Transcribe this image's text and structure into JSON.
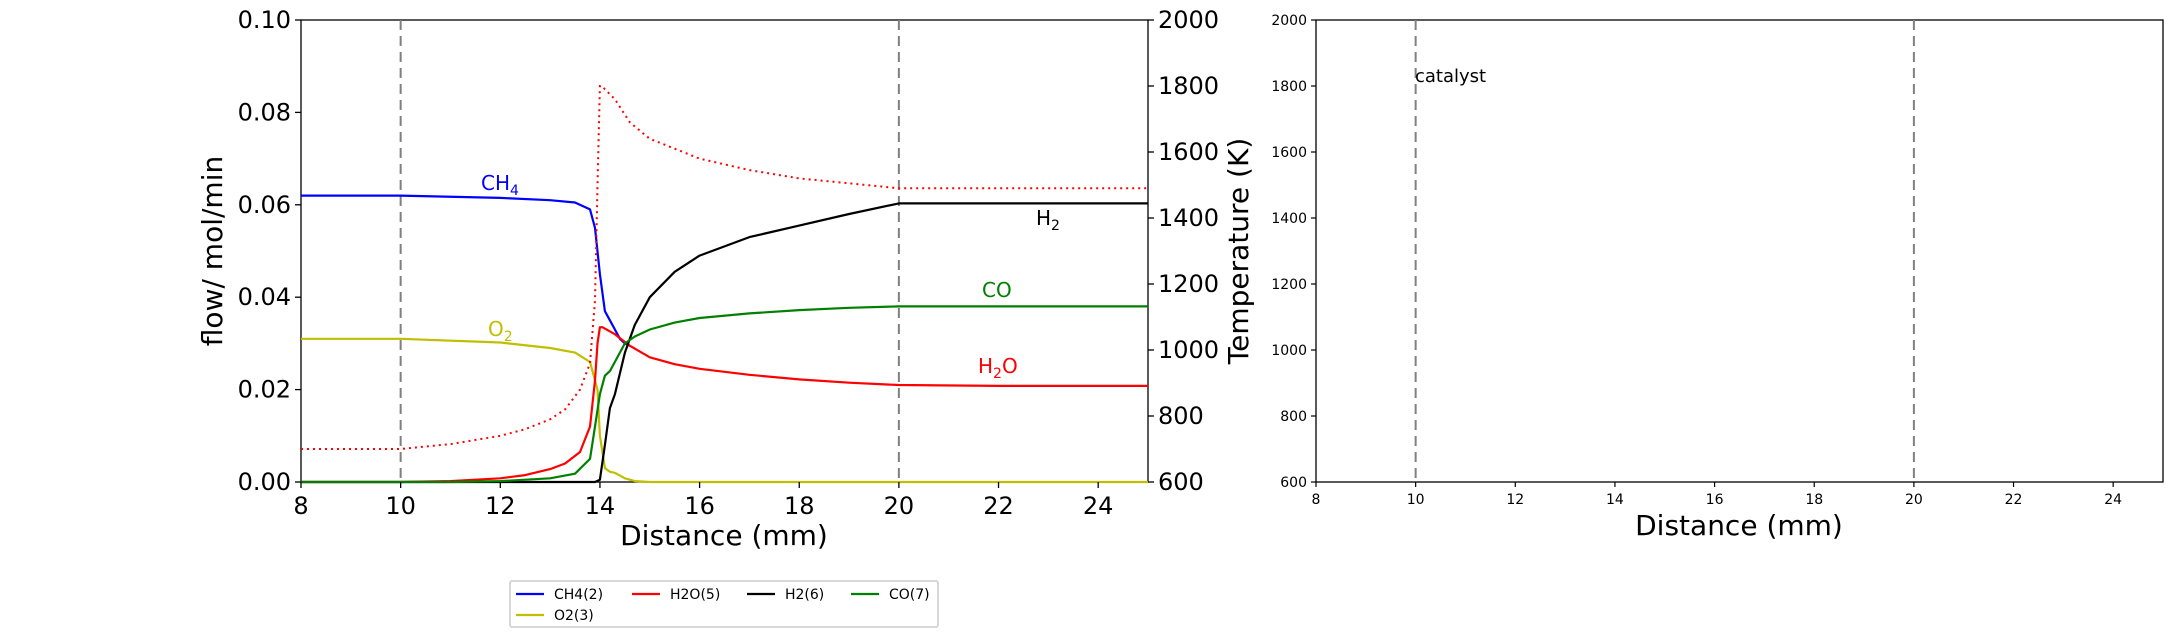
{
  "chart_data": [
    {
      "type": "line",
      "xlabel": "Distance (mm)",
      "ylabel": "flow/ mol/min",
      "y2label": "Temperature (K)",
      "xlim": [
        8,
        25
      ],
      "ylim": [
        0,
        0.1
      ],
      "y2lim": [
        600,
        2000
      ],
      "xticks": [
        "8",
        "10",
        "12",
        "14",
        "16",
        "18",
        "20",
        "22",
        "24"
      ],
      "yticks": [
        "0.00",
        "0.02",
        "0.04",
        "0.06",
        "0.08",
        "0.10"
      ],
      "y2ticks": [
        "600",
        "800",
        "1000",
        "1200",
        "1400",
        "1600",
        "1800",
        "2000"
      ],
      "vlines": [
        10,
        20
      ],
      "grid": false,
      "series": [
        {
          "name": "CH4(2)",
          "color": "#0000ff",
          "label": {
            "base": "CH",
            "sub": "4"
          },
          "x": [
            8,
            10,
            12,
            13,
            13.5,
            13.8,
            13.9,
            14.0,
            14.1,
            14.2,
            14.3,
            14.4,
            14.5,
            14.6
          ],
          "y": [
            0.062,
            0.062,
            0.0615,
            0.061,
            0.0605,
            0.059,
            0.055,
            0.045,
            0.037,
            0.035,
            0.033,
            0.031,
            0.03,
            0.0295
          ]
        },
        {
          "name": "O2(3)",
          "color": "#bfbf00",
          "label": {
            "base": "O",
            "sub": "2"
          },
          "x": [
            8,
            10,
            12,
            13,
            13.5,
            13.8,
            13.95,
            14.0,
            14.1,
            14.2,
            14.3,
            14.5,
            14.7,
            15,
            25
          ],
          "y": [
            0.031,
            0.031,
            0.0302,
            0.029,
            0.028,
            0.026,
            0.02,
            0.01,
            0.003,
            0.0022,
            0.002,
            0.0008,
            0.0002,
            0.0,
            0.0
          ]
        },
        {
          "name": "H2O(5)",
          "color": "#ff0000",
          "label": {
            "base": "H",
            "sub": "2",
            "tail": "O"
          },
          "x": [
            8,
            10,
            11,
            12,
            12.5,
            13,
            13.3,
            13.6,
            13.8,
            13.9,
            13.95,
            14.0,
            14.05,
            14.3,
            14.6,
            15,
            15.5,
            16,
            17,
            18,
            19,
            20,
            22,
            25
          ],
          "y": [
            0.0,
            0.0,
            0.0002,
            0.0008,
            0.0015,
            0.0028,
            0.004,
            0.0065,
            0.012,
            0.022,
            0.03,
            0.0335,
            0.0335,
            0.032,
            0.0295,
            0.027,
            0.0255,
            0.0245,
            0.0232,
            0.0222,
            0.0215,
            0.021,
            0.0208,
            0.0208
          ]
        },
        {
          "name": "H2(6)",
          "color": "#000000",
          "label": {
            "base": "H",
            "sub": "2"
          },
          "x": [
            8,
            13,
            13.9,
            14.0,
            14.1,
            14.2,
            14.3,
            14.5,
            14.7,
            15,
            15.5,
            16,
            17,
            18,
            19,
            20,
            25
          ],
          "y": [
            0.0,
            0.0,
            0.0,
            0.0005,
            0.008,
            0.016,
            0.019,
            0.028,
            0.034,
            0.04,
            0.0455,
            0.049,
            0.053,
            0.0555,
            0.058,
            0.0603,
            0.0603
          ]
        },
        {
          "name": "CO(7)",
          "color": "#008000",
          "label": {
            "base": "CO"
          },
          "x": [
            8,
            11,
            12,
            13,
            13.5,
            13.8,
            13.9,
            14.0,
            14.1,
            14.2,
            14.3,
            14.5,
            14.7,
            15,
            15.5,
            16,
            17,
            18,
            19,
            20,
            25
          ],
          "y": [
            0.0,
            0.0,
            0.0002,
            0.0008,
            0.0018,
            0.005,
            0.012,
            0.019,
            0.023,
            0.024,
            0.026,
            0.03,
            0.0315,
            0.033,
            0.0345,
            0.0355,
            0.0365,
            0.0372,
            0.0377,
            0.038,
            0.038
          ]
        }
      ],
      "temperature": {
        "color": "#ff0000",
        "style": "dotted",
        "x": [
          8,
          10,
          11,
          12,
          12.5,
          13,
          13.3,
          13.6,
          13.8,
          13.9,
          13.95,
          14.0,
          14.05,
          14.1,
          14.3,
          14.6,
          15,
          15.5,
          16,
          17,
          18,
          19,
          20,
          25
        ],
        "y": [
          700,
          700,
          715,
          740,
          760,
          790,
          820,
          880,
          960,
          1150,
          1500,
          1800,
          1800,
          1790,
          1760,
          1690,
          1640,
          1610,
          1580,
          1545,
          1520,
          1505,
          1490,
          1490
        ]
      }
    },
    {
      "type": "line",
      "xlabel": "Distance (mm)",
      "ylabel": "",
      "xlim": [
        8,
        25
      ],
      "ylim": [
        600,
        2000
      ],
      "xticks": [
        "8",
        "10",
        "12",
        "14",
        "16",
        "18",
        "20",
        "22",
        "24"
      ],
      "yticks": [
        "600",
        "800",
        "1000",
        "1200",
        "1400",
        "1600",
        "1800",
        "2000"
      ],
      "vlines": [
        10,
        20
      ],
      "annotation": "catalyst",
      "grid": false,
      "series": []
    }
  ],
  "legend": {
    "entries": [
      {
        "label": "CH4(2)",
        "color": "#0000ff"
      },
      {
        "label": "H2O(5)",
        "color": "#ff0000"
      },
      {
        "label": "H2(6)",
        "color": "#000000"
      },
      {
        "label": "CO(7)",
        "color": "#008000"
      },
      {
        "label": "O2(3)",
        "color": "#bfbf00"
      }
    ]
  }
}
